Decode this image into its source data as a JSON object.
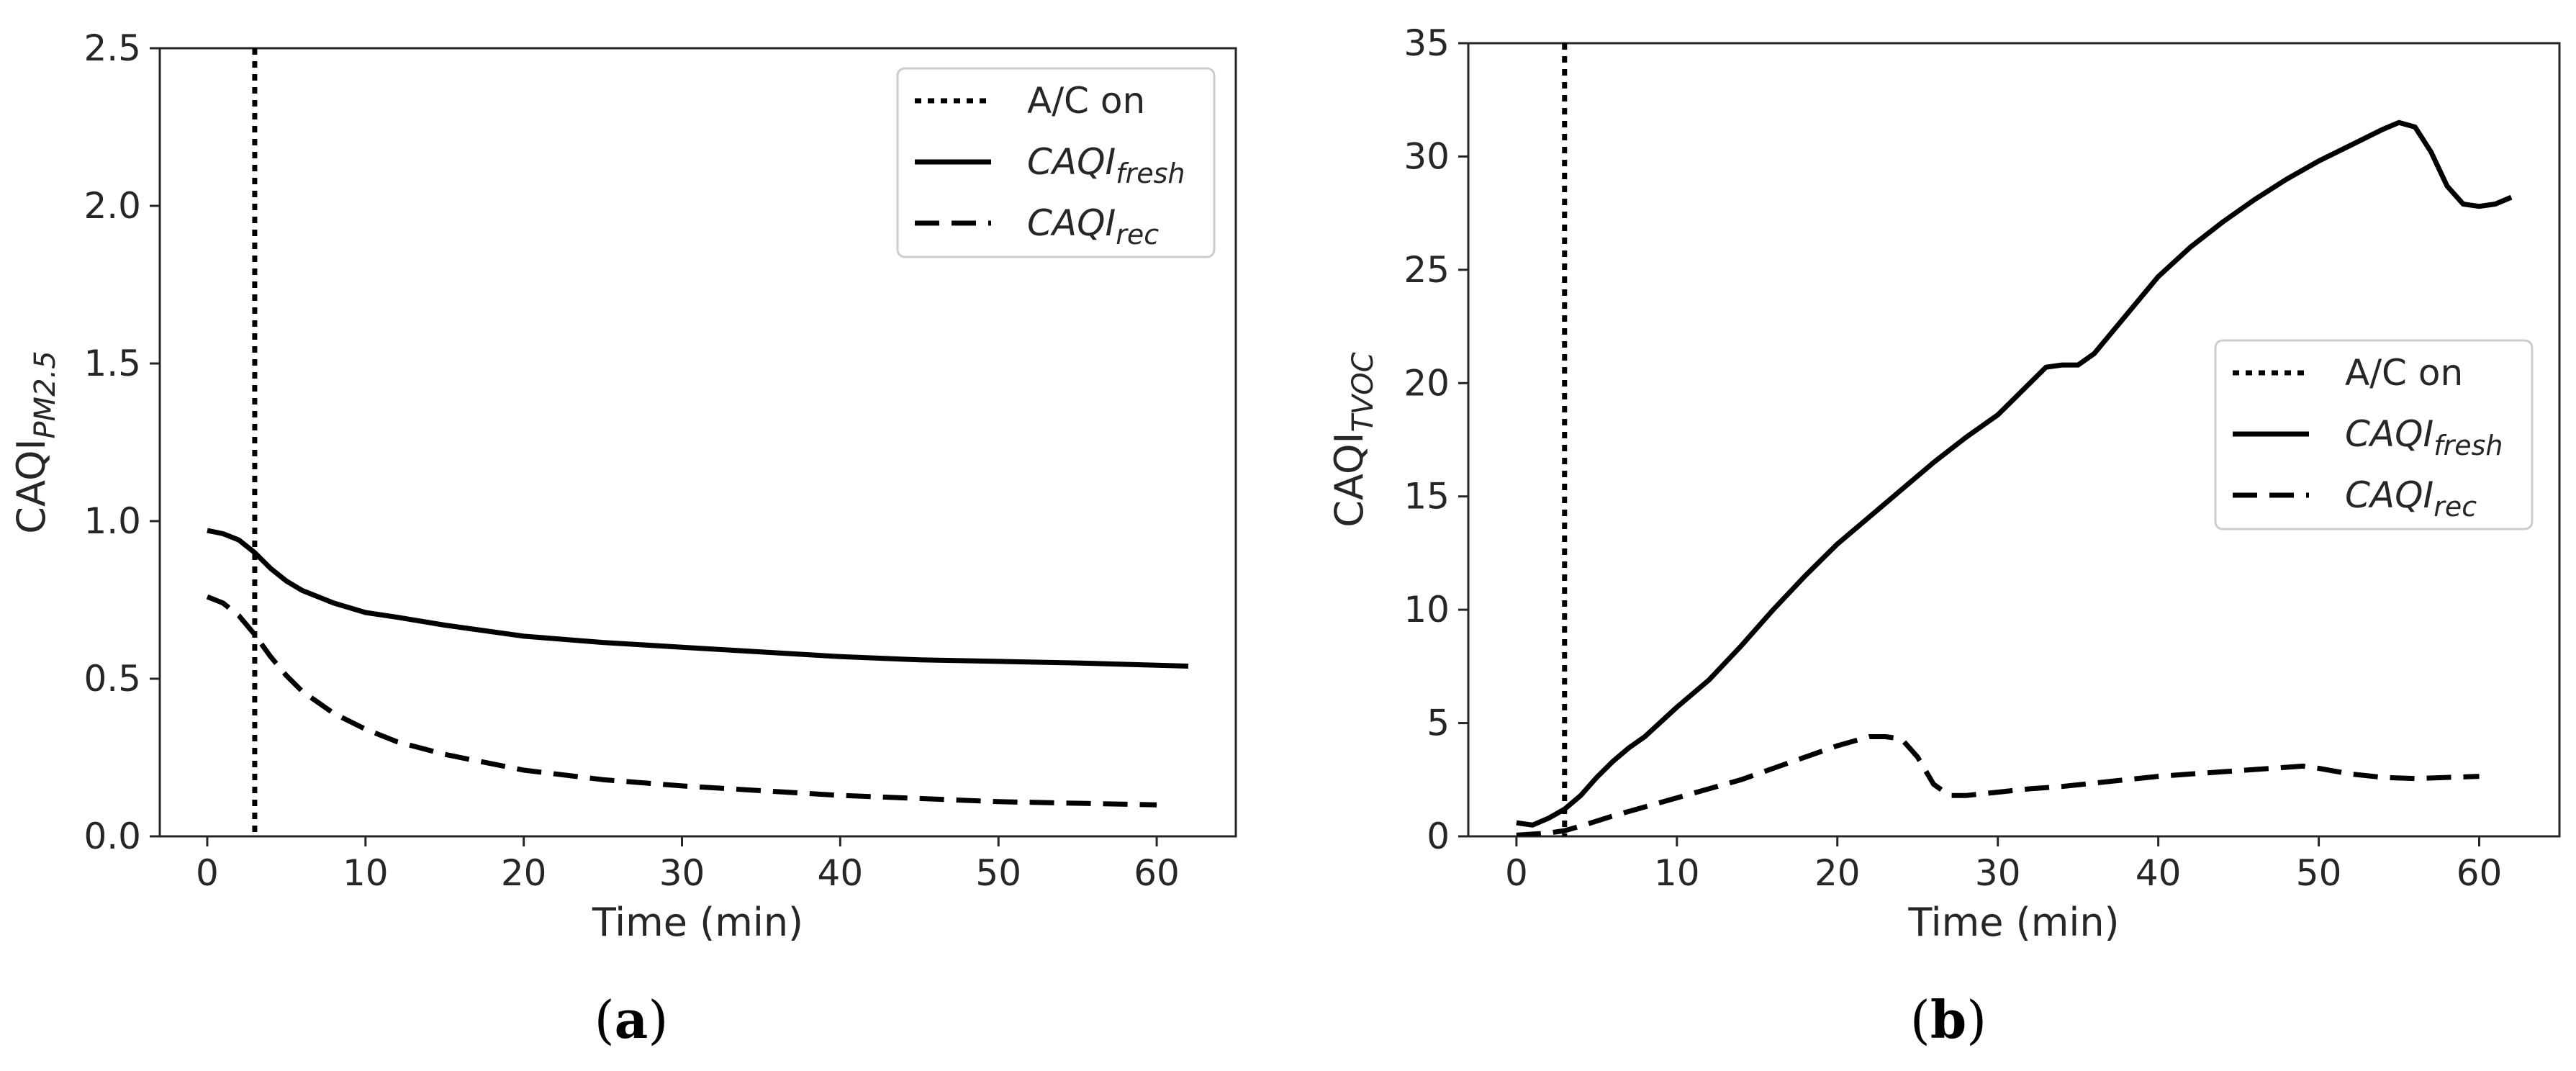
{
  "chart_data": [
    {
      "type": "line",
      "panel": "a",
      "caption_open": "(",
      "caption_letter": "a",
      "caption_close": ")",
      "xlabel": "Time (min)",
      "ylabel_main": "CAQI",
      "ylabel_sub": "PM2.5",
      "xlim": [
        -3,
        65
      ],
      "ylim": [
        0,
        2.5
      ],
      "xticks": [
        0,
        10,
        20,
        30,
        40,
        50,
        60
      ],
      "xtick_labels": [
        "0",
        "10",
        "20",
        "30",
        "40",
        "50",
        "60"
      ],
      "yticks": [
        0,
        0.5,
        1,
        1.5,
        2,
        2.5
      ],
      "ytick_labels": [
        "0.0",
        "0.5",
        "1.0",
        "1.5",
        "2.0",
        "2.5"
      ],
      "vline": {
        "name": "A/C on",
        "x": 3,
        "style": "dotted"
      },
      "legend_position": "upper-right",
      "legend": [
        {
          "style": "dotted",
          "label_main": "A/C on",
          "label_sub": ""
        },
        {
          "style": "solid",
          "label_main": "CAQI",
          "label_sub": "fresh"
        },
        {
          "style": "dashed",
          "label_main": "CAQI",
          "label_sub": "rec"
        }
      ],
      "series": [
        {
          "name": "CAQI_fresh",
          "style": "solid",
          "x": [
            0,
            1,
            2,
            3,
            4,
            5,
            6,
            7,
            8,
            10,
            12,
            15,
            20,
            25,
            30,
            35,
            40,
            45,
            50,
            55,
            62
          ],
          "y": [
            0.97,
            0.96,
            0.94,
            0.9,
            0.85,
            0.81,
            0.78,
            0.76,
            0.74,
            0.71,
            0.695,
            0.67,
            0.635,
            0.615,
            0.6,
            0.585,
            0.57,
            0.56,
            0.555,
            0.55,
            0.54
          ]
        },
        {
          "name": "CAQI_rec",
          "style": "dashed",
          "x": [
            0,
            1,
            2,
            3,
            4,
            5,
            6,
            8,
            10,
            12,
            15,
            20,
            25,
            30,
            35,
            40,
            45,
            50,
            55,
            60
          ],
          "y": [
            0.76,
            0.74,
            0.7,
            0.64,
            0.57,
            0.51,
            0.46,
            0.39,
            0.34,
            0.3,
            0.26,
            0.21,
            0.18,
            0.16,
            0.145,
            0.13,
            0.12,
            0.11,
            0.105,
            0.1
          ]
        }
      ]
    },
    {
      "type": "line",
      "panel": "b",
      "caption_open": "(",
      "caption_letter": "b",
      "caption_close": ")",
      "xlabel": "Time (min)",
      "ylabel_main": "CAQI",
      "ylabel_sub": "TVOC",
      "xlim": [
        -3,
        65
      ],
      "ylim": [
        0,
        35
      ],
      "xticks": [
        0,
        10,
        20,
        30,
        40,
        50,
        60
      ],
      "xtick_labels": [
        "0",
        "10",
        "20",
        "30",
        "40",
        "50",
        "60"
      ],
      "yticks": [
        0,
        5,
        10,
        15,
        20,
        25,
        30,
        35
      ],
      "ytick_labels": [
        "0",
        "5",
        "10",
        "15",
        "20",
        "25",
        "30",
        "35"
      ],
      "vline": {
        "name": "A/C on",
        "x": 3,
        "style": "dotted"
      },
      "legend_position": "center-right",
      "legend": [
        {
          "style": "dotted",
          "label_main": "A/C on",
          "label_sub": ""
        },
        {
          "style": "solid",
          "label_main": "CAQI",
          "label_sub": "fresh"
        },
        {
          "style": "dashed",
          "label_main": "CAQI",
          "label_sub": "rec"
        }
      ],
      "series": [
        {
          "name": "CAQI_fresh",
          "style": "solid",
          "x": [
            0,
            1,
            2,
            3,
            4,
            5,
            6,
            7,
            8,
            10,
            12,
            14,
            16,
            18,
            20,
            22,
            24,
            26,
            28,
            30,
            32,
            33,
            34,
            35,
            36,
            38,
            40,
            42,
            44,
            46,
            48,
            50,
            52,
            54,
            55,
            56,
            57,
            58,
            59,
            60,
            61,
            62
          ],
          "y": [
            0.6,
            0.5,
            0.8,
            1.2,
            1.8,
            2.6,
            3.3,
            3.9,
            4.4,
            5.7,
            6.9,
            8.4,
            10.0,
            11.5,
            12.9,
            14.1,
            15.3,
            16.5,
            17.6,
            18.6,
            20.0,
            20.7,
            20.8,
            20.8,
            21.3,
            23.0,
            24.7,
            26.0,
            27.1,
            28.1,
            29.0,
            29.8,
            30.5,
            31.2,
            31.5,
            31.3,
            30.2,
            28.7,
            27.9,
            27.8,
            27.9,
            28.2
          ]
        },
        {
          "name": "CAQI_rec",
          "style": "dashed",
          "x": [
            0,
            1,
            2,
            3,
            4,
            6,
            8,
            10,
            12,
            14,
            16,
            18,
            20,
            22,
            23,
            24,
            25,
            26,
            27,
            28,
            30,
            32,
            34,
            36,
            38,
            40,
            42,
            44,
            46,
            48,
            49,
            50,
            52,
            54,
            56,
            58,
            60
          ],
          "y": [
            0.05,
            0.1,
            0.15,
            0.25,
            0.45,
            0.9,
            1.3,
            1.7,
            2.1,
            2.5,
            3.0,
            3.5,
            4.0,
            4.4,
            4.4,
            4.3,
            3.5,
            2.3,
            1.8,
            1.8,
            1.95,
            2.1,
            2.2,
            2.35,
            2.5,
            2.65,
            2.75,
            2.85,
            2.95,
            3.05,
            3.1,
            3.0,
            2.75,
            2.6,
            2.55,
            2.6,
            2.65
          ]
        }
      ]
    }
  ]
}
